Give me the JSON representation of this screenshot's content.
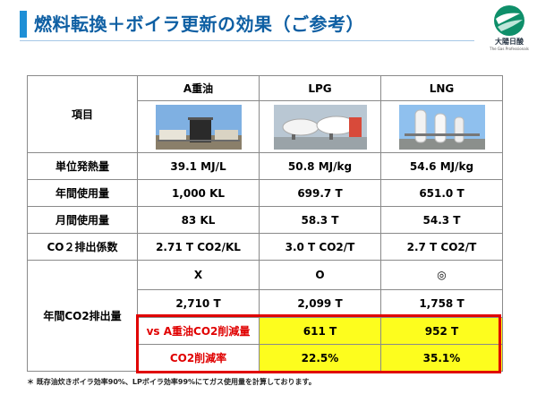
{
  "slide": {
    "title": "燃料転換＋ボイラ更新の効果（ご参考）"
  },
  "logo": {
    "name": "大陽日酸",
    "tagline": "The Gas Professionals"
  },
  "table": {
    "corner_label": "項目",
    "columns": [
      "A重油",
      "LPG",
      "LNG"
    ],
    "photos": [
      "heavy-oil-tank-photo",
      "lpg-tank-photo",
      "lng-tank-photo"
    ],
    "rows": [
      {
        "label": "単位発熱量",
        "values": [
          "39.1 MJ/L",
          "50.8 MJ/kg",
          "54.6 MJ/kg"
        ]
      },
      {
        "label": "年間使用量",
        "values": [
          "1,000 KL",
          "699.7 T",
          "651.0 T"
        ]
      },
      {
        "label": "月間使用量",
        "values": [
          "83 KL",
          "58.3 T",
          "54.3 T"
        ]
      },
      {
        "label": "CO２排出係数",
        "values": [
          "2.71 T CO2/KL",
          "3.0 T CO2/T",
          "2.7 T CO2/T"
        ]
      }
    ],
    "emission": {
      "label": "年間CO2排出量",
      "marks": [
        "X",
        "O",
        "◎"
      ],
      "values": [
        "2,710 T",
        "2,099 T",
        "1,758 T"
      ],
      "reduction_label": "vs A重油CO2削減量",
      "reduction_values": [
        "611 T",
        "952 T"
      ],
      "rate_label": "CO2削減率",
      "rate_values": [
        "22.5%",
        "35.1%"
      ]
    }
  },
  "footnote": "＊ 既存油炊きボイラ効率90%、LPボイラ効率99%にてガス使用量を計算しております。",
  "colors": {
    "title": "#0e5fa3",
    "accent": "#1e8fd6",
    "highlight_fill": "#fdfd1e",
    "highlight_border": "#e00000"
  }
}
